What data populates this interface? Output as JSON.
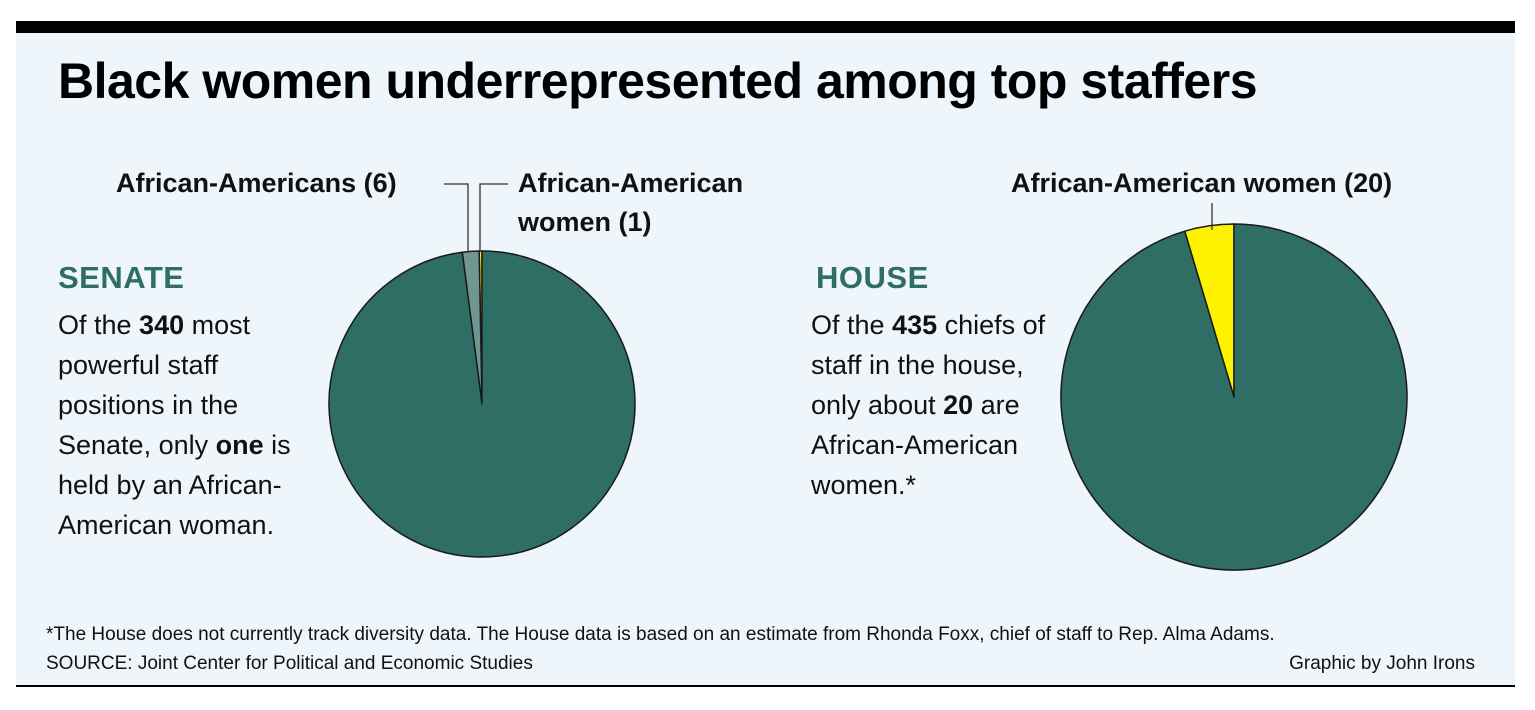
{
  "title": "Black women underrepresented among top staffers",
  "senate": {
    "heading": "SENATE",
    "desc": {
      "t1": "Of the ",
      "n1": "340",
      "t2": " most powerful staff positions in the Senate, only ",
      "n2": "one",
      "t3": " is held by an African-American woman."
    }
  },
  "house": {
    "heading": "HOUSE",
    "desc": {
      "t1": "Of the ",
      "n1": "435",
      "t2": " chiefs of staff in the house, only about ",
      "n2": "20",
      "t3": " are African-American women.*"
    }
  },
  "chart_data": [
    {
      "type": "pie",
      "name": "senate",
      "total": 340,
      "slices": [
        {
          "label": "African-American women (1)",
          "value": 1,
          "color": "#fff200"
        },
        {
          "label": "African-Americans (6)",
          "value": 6,
          "color": "#6f968f"
        },
        {
          "label": "",
          "value": 333,
          "color": "#2e6e64"
        }
      ]
    },
    {
      "type": "pie",
      "name": "house",
      "total": 435,
      "slices": [
        {
          "label": "African-American women (20)",
          "value": 20,
          "color": "#fff200"
        },
        {
          "label": "",
          "value": 415,
          "color": "#2e6e64"
        }
      ]
    }
  ],
  "labels": {
    "senate_aa": "African-Americans (6)",
    "senate_aaw_line1": "African-American",
    "senate_aaw_line2": "women (1)",
    "house_aaw": "African-American women (20)"
  },
  "footer": {
    "note": "*The House does not currently track diversity data. The House data is based on an estimate from Rhonda Foxx, chief of staff to Rep. Alma Adams.",
    "source": "SOURCE: Joint Center for Political and Economic Studies",
    "credit": "Graphic by John Irons"
  }
}
